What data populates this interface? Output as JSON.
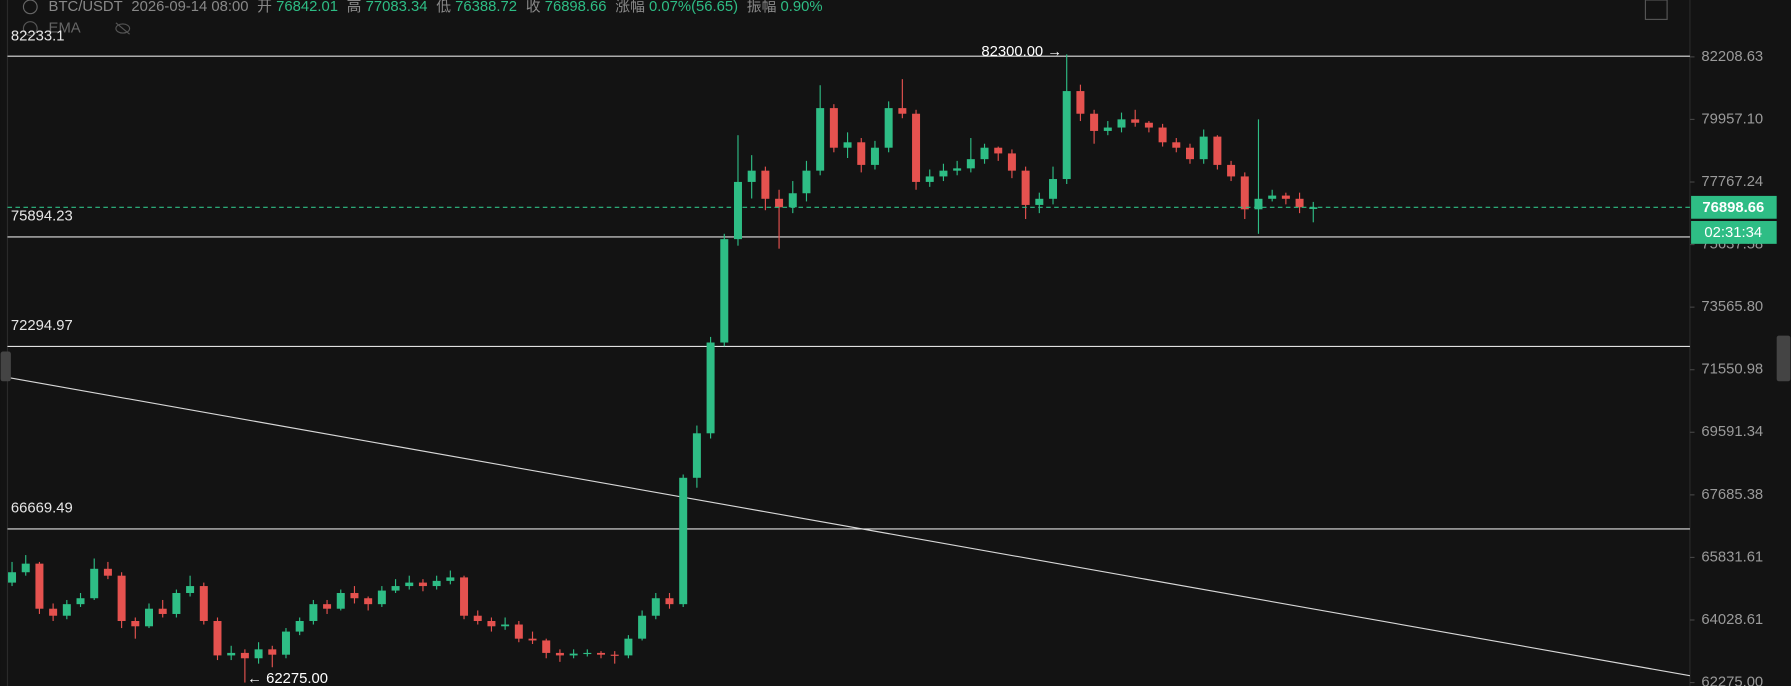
{
  "header": {
    "symbol": "BTC/USDT",
    "time": "2026-09-14 08:00",
    "open_label": "开",
    "high_label": "高",
    "low_label": "低",
    "close_label": "收",
    "change_label": "涨幅",
    "change": "0.07%(56.65)",
    "amplitude_label": "振幅",
    "amplitude": "0.90%",
    "indicator": "EMA"
  },
  "countdown": "02:31:34",
  "chart_data": {
    "type": "candlestick",
    "log_scale": true,
    "grid": false,
    "up_color": "#2ebd85",
    "down_color": "#e5524f",
    "ylim": [
      62180,
      84310
    ],
    "yticks": [
      82208.63,
      {
        "value": 79957.1,
        "label": "79957.10"
      },
      77767.24,
      75637.58,
      {
        "value": 73565.8,
        "label": "73565.80"
      },
      71550.98,
      69591.34,
      67685.38,
      65831.61,
      64028.61,
      {
        "value": 62275,
        "label": "62275.00"
      }
    ],
    "levels": [
      {
        "value": 82233.1,
        "label": "82233.1"
      },
      {
        "value": 75894.23,
        "label": "75894.23"
      },
      {
        "value": 72294.97,
        "label": "72294.97"
      },
      {
        "value": 66669.49,
        "label": "66669.49"
      }
    ],
    "annotations": [
      "82300.00 →",
      "← 62275.00"
    ],
    "ohlc": [
      [
        65100,
        65700,
        65000,
        65400
      ],
      [
        65400,
        65900,
        65300,
        65650
      ],
      [
        65650,
        65700,
        64200,
        64350
      ],
      [
        64350,
        64500,
        64000,
        64150
      ],
      [
        64150,
        64600,
        64050,
        64480
      ],
      [
        64480,
        64800,
        64400,
        64650
      ],
      [
        64650,
        65800,
        64600,
        65500
      ],
      [
        65500,
        65700,
        65200,
        65300
      ],
      [
        65300,
        65400,
        63800,
        64000
      ],
      [
        64000,
        64100,
        63500,
        63850
      ],
      [
        63850,
        64500,
        63800,
        64350
      ],
      [
        64350,
        64600,
        64100,
        64200
      ],
      [
        64200,
        64900,
        64100,
        64800
      ],
      [
        64800,
        65300,
        64700,
        65000
      ],
      [
        65000,
        65100,
        63900,
        64000
      ],
      [
        64000,
        64100,
        62900,
        63030
      ],
      [
        63030,
        63300,
        62900,
        63100
      ],
      [
        63100,
        63200,
        62275,
        62950
      ],
      [
        62950,
        63400,
        62800,
        63200
      ],
      [
        63200,
        63300,
        62700,
        63050
      ],
      [
        63050,
        63800,
        62950,
        63700
      ],
      [
        63700,
        64100,
        63600,
        64000
      ],
      [
        64000,
        64600,
        63900,
        64480
      ],
      [
        64480,
        64600,
        64200,
        64350
      ],
      [
        64350,
        64900,
        64300,
        64800
      ],
      [
        64800,
        65000,
        64500,
        64650
      ],
      [
        64650,
        64700,
        64300,
        64480
      ],
      [
        64480,
        65000,
        64400,
        64870
      ],
      [
        64870,
        65200,
        64800,
        65000
      ],
      [
        65000,
        65300,
        64900,
        65100
      ],
      [
        65100,
        65200,
        64850,
        65000
      ],
      [
        65000,
        65300,
        64900,
        65150
      ],
      [
        65150,
        65450,
        65050,
        65250
      ],
      [
        65250,
        65300,
        64050,
        64150
      ],
      [
        64150,
        64300,
        63900,
        64000
      ],
      [
        64000,
        64100,
        63700,
        63850
      ],
      [
        63850,
        64100,
        63750,
        63900
      ],
      [
        63900,
        64000,
        63400,
        63500
      ],
      [
        63500,
        63700,
        63350,
        63450
      ],
      [
        63450,
        63500,
        62950,
        63100
      ],
      [
        63100,
        63200,
        62850,
        63030
      ],
      [
        63030,
        63200,
        62950,
        63080
      ],
      [
        63080,
        63200,
        63000,
        63100
      ],
      [
        63100,
        63150,
        62950,
        63050
      ],
      [
        63050,
        63150,
        62800,
        63030
      ],
      [
        63030,
        63600,
        62950,
        63500
      ],
      [
        63500,
        64300,
        63450,
        64150
      ],
      [
        64150,
        64800,
        64050,
        64650
      ],
      [
        64650,
        64800,
        64350,
        64480
      ],
      [
        64480,
        68300,
        64400,
        68200
      ],
      [
        68200,
        69800,
        67900,
        69560
      ],
      [
        69560,
        72600,
        69400,
        72420
      ],
      [
        72420,
        76000,
        72300,
        75820
      ],
      [
        75820,
        79400,
        75600,
        77770
      ],
      [
        77770,
        78700,
        77200,
        78160
      ],
      [
        78160,
        78300,
        76800,
        77190
      ],
      [
        77190,
        77500,
        75500,
        76900
      ],
      [
        76900,
        77800,
        76700,
        77380
      ],
      [
        77380,
        78500,
        77100,
        78160
      ],
      [
        78160,
        81180,
        78000,
        80360
      ],
      [
        80360,
        80500,
        78800,
        78960
      ],
      [
        78960,
        79500,
        78600,
        79150
      ],
      [
        79150,
        79300,
        78100,
        78360
      ],
      [
        78360,
        79200,
        78200,
        78960
      ],
      [
        78960,
        80600,
        78800,
        80360
      ],
      [
        80360,
        81400,
        80000,
        80160
      ],
      [
        80160,
        80300,
        77500,
        77770
      ],
      [
        77770,
        78200,
        77600,
        77960
      ],
      [
        77960,
        78400,
        77800,
        78160
      ],
      [
        78160,
        78500,
        78000,
        78240
      ],
      [
        78240,
        79300,
        78100,
        78560
      ],
      [
        78560,
        79100,
        78400,
        78960
      ],
      [
        78960,
        79000,
        78500,
        78760
      ],
      [
        78760,
        78900,
        77900,
        78160
      ],
      [
        78160,
        78300,
        76500,
        76980
      ],
      [
        76980,
        77400,
        76700,
        77190
      ],
      [
        77190,
        78300,
        77000,
        77870
      ],
      [
        77870,
        82300,
        77700,
        80970
      ],
      [
        80970,
        81200,
        79900,
        80160
      ],
      [
        80160,
        80300,
        79100,
        79550
      ],
      [
        79550,
        79900,
        79400,
        79670
      ],
      [
        79670,
        80200,
        79500,
        79960
      ],
      [
        79960,
        80300,
        79700,
        79840
      ],
      [
        79840,
        79900,
        79500,
        79670
      ],
      [
        79670,
        79800,
        79000,
        79150
      ],
      [
        79150,
        79300,
        78800,
        78960
      ],
      [
        78960,
        79100,
        78400,
        78560
      ],
      [
        78560,
        79600,
        78400,
        79350
      ],
      [
        79350,
        79400,
        78200,
        78360
      ],
      [
        78360,
        78500,
        77800,
        77960
      ],
      [
        77960,
        78100,
        76500,
        76830
      ],
      [
        76830,
        79960,
        76000,
        77190
      ],
      [
        77190,
        77500,
        77100,
        77300
      ],
      [
        77300,
        77400,
        77000,
        77190
      ],
      [
        77190,
        77400,
        76700,
        76900
      ],
      [
        76842.01,
        77083.34,
        76388.72,
        76898.66
      ]
    ]
  }
}
